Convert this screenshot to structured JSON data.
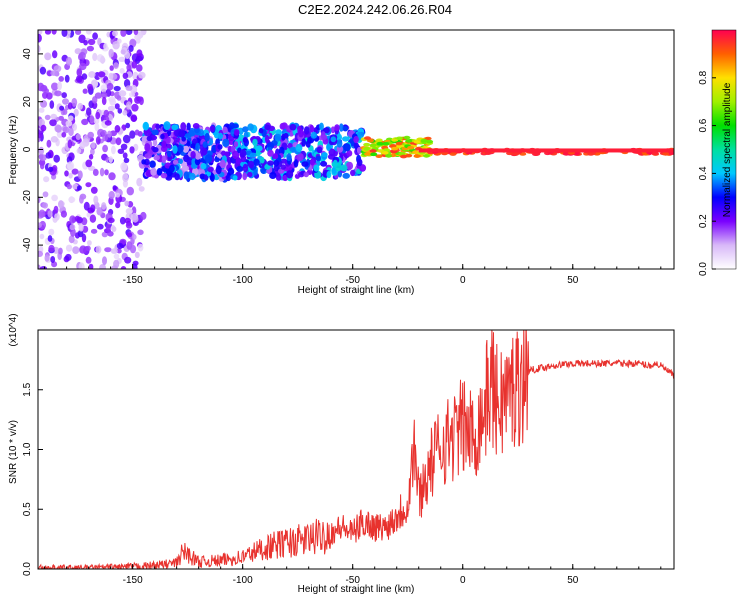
{
  "figure_title": "C2E2.2024.242.06.26.R04",
  "colors": {
    "snr_line": "#e8322e",
    "background": "#ffffff",
    "axis": "#000000"
  },
  "chart_data": [
    {
      "type": "heatmap",
      "title": "C2E2.2024.242.06.26.R04",
      "xlabel": "Height of straight line (km)",
      "ylabel": "Frequency (Hz)",
      "xlim": [
        -193,
        96
      ],
      "ylim": [
        -50,
        50
      ],
      "x_ticks": [
        -150,
        -100,
        -50,
        0,
        50
      ],
      "y_ticks": [
        -40,
        -20,
        0,
        20,
        40
      ],
      "colorbar": {
        "label": "Normalized spectral amplitude",
        "range": [
          0,
          1
        ],
        "ticks": [
          "0.0",
          "0.2",
          "0.4",
          "0.6",
          "0.8"
        ],
        "colormap": "rainbow (white, violet, blue, cyan, green, yellow, red)"
      },
      "description_of_signal": [
        {
          "x_range": [
            -193,
            -145
          ],
          "freq_spread": [
            -50,
            50
          ],
          "amplitude": [
            0.05,
            0.25
          ]
        },
        {
          "x_range": [
            -145,
            -105
          ],
          "freq_spread": [
            -12,
            10
          ],
          "amplitude": [
            0.1,
            0.4
          ]
        },
        {
          "x_range": [
            -105,
            -45
          ],
          "freq_spread": [
            -12,
            10
          ],
          "amplitude": [
            0.15,
            0.45
          ]
        },
        {
          "x_range": [
            -45,
            -15
          ],
          "freq_spread": [
            -3,
            5
          ],
          "amplitude": [
            0.6,
            0.95
          ]
        },
        {
          "x_range": [
            -15,
            96
          ],
          "freq_spread": [
            -2,
            0
          ],
          "amplitude": [
            0.9,
            1.0
          ]
        }
      ]
    },
    {
      "type": "line",
      "title": "",
      "xlabel": "Height of straight line (km)",
      "ylabel": "SNR (10 * v/v)",
      "y_multiplier_label": "(x10^4)",
      "xlim": [
        -193,
        96
      ],
      "ylim": [
        0,
        2.0
      ],
      "x_ticks": [
        -150,
        -100,
        -50,
        0,
        50
      ],
      "y_ticks": [
        "0.0",
        "0.5",
        "1.0",
        "1.5"
      ],
      "series": [
        {
          "name": "SNR",
          "x": [
            -193,
            -170,
            -150,
            -140,
            -130,
            -127,
            -120,
            -110,
            -100,
            -90,
            -80,
            -70,
            -60,
            -55,
            -50,
            -45,
            -40,
            -35,
            -30,
            -25,
            -22,
            -20,
            -15,
            -10,
            -5,
            0,
            5,
            10,
            13,
            15,
            20,
            25,
            30,
            40,
            50,
            60,
            70,
            80,
            85,
            88,
            90,
            96
          ],
          "y": [
            0.01,
            0.01,
            0.02,
            0.03,
            0.05,
            0.15,
            0.06,
            0.07,
            0.1,
            0.18,
            0.22,
            0.25,
            0.3,
            0.35,
            0.3,
            0.4,
            0.35,
            0.35,
            0.45,
            0.55,
            1.05,
            0.6,
            0.85,
            1.05,
            1.1,
            1.2,
            1.1,
            1.35,
            1.6,
            1.4,
            1.45,
            1.55,
            1.66,
            1.7,
            1.72,
            1.72,
            1.72,
            1.72,
            1.7,
            1.72,
            1.7,
            1.62
          ]
        }
      ]
    }
  ]
}
